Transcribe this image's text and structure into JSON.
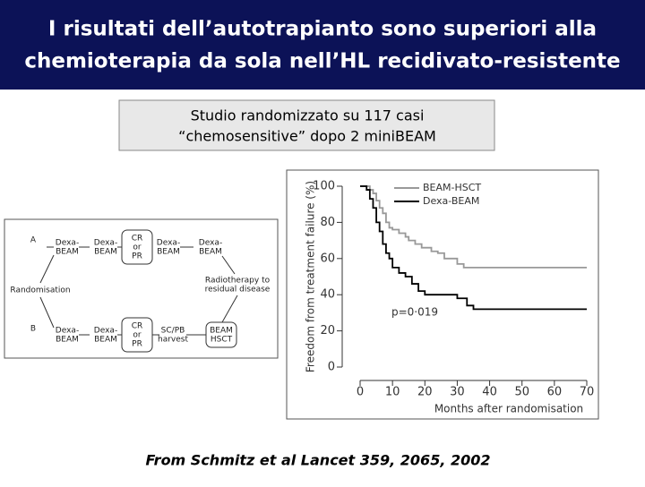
{
  "header": {
    "title_lines": [
      "I risultati dell’autotrapianto sono superiori alla",
      "chemioterapia da sola nell’HL recidivato-resistente"
    ]
  },
  "box": {
    "lines": [
      "Studio randomizzato su 117 casi",
      "“chemosensitive” dopo 2 miniBEAM"
    ]
  },
  "diagram": {
    "nodes": [
      {
        "lines": [
          "A"
        ]
      },
      {
        "lines": [
          "Dexa-",
          "BEAM"
        ]
      },
      {
        "lines": [
          "Dexa-",
          "BEAM"
        ]
      },
      {
        "lines": [
          "CR",
          "or",
          "PR"
        ]
      },
      {
        "lines": [
          "Dexa-",
          "BEAM"
        ]
      },
      {
        "lines": [
          "Dexa-",
          "BEAM"
        ]
      },
      {
        "lines": [
          "Randomisation"
        ]
      },
      {
        "lines": [
          "Radiotherapy to",
          "residual disease"
        ]
      },
      {
        "lines": [
          "B"
        ]
      },
      {
        "lines": [
          "Dexa-",
          "BEAM"
        ]
      },
      {
        "lines": [
          "Dexa-",
          "BEAM"
        ]
      },
      {
        "lines": [
          "CR",
          "or",
          "PR"
        ]
      },
      {
        "lines": [
          "SC/PB",
          "harvest"
        ]
      },
      {
        "lines": [
          "BEAM",
          "HSCT"
        ]
      }
    ]
  },
  "chart_data": {
    "type": "line",
    "y_label": "Freedom from treatment failure (%)",
    "x_label": "Months after randomisation",
    "annotation": "p=0·019",
    "xlim": [
      0,
      70
    ],
    "xticks": [
      0,
      10,
      20,
      30,
      40,
      50,
      60,
      70
    ],
    "ylim": [
      0,
      100
    ],
    "yticks": [
      0,
      20,
      40,
      60,
      80,
      100
    ],
    "series": [
      {
        "name": "BEAM-HSCT",
        "color": "#999999",
        "x": [
          0,
          3,
          4,
          5,
          6,
          7,
          8,
          9,
          10,
          12,
          14,
          15,
          17,
          19,
          22,
          24,
          26,
          30,
          32,
          70
        ],
        "values": [
          100,
          98,
          96,
          92,
          88,
          85,
          80,
          77,
          76,
          74,
          72,
          70,
          68,
          66,
          64,
          63,
          60,
          57,
          55,
          55
        ]
      },
      {
        "name": "Dexa-BEAM",
        "color": "#000000",
        "x": [
          0,
          2,
          3,
          4,
          5,
          6,
          7,
          8,
          9,
          10,
          12,
          14,
          16,
          18,
          20,
          30,
          33,
          35,
          70
        ],
        "values": [
          100,
          98,
          93,
          88,
          80,
          75,
          68,
          63,
          60,
          55,
          52,
          50,
          46,
          42,
          40,
          38,
          34,
          32,
          32
        ]
      }
    ]
  },
  "footer": {
    "source": "From Schmitz et al Lancet 359, 2065, 2002"
  }
}
